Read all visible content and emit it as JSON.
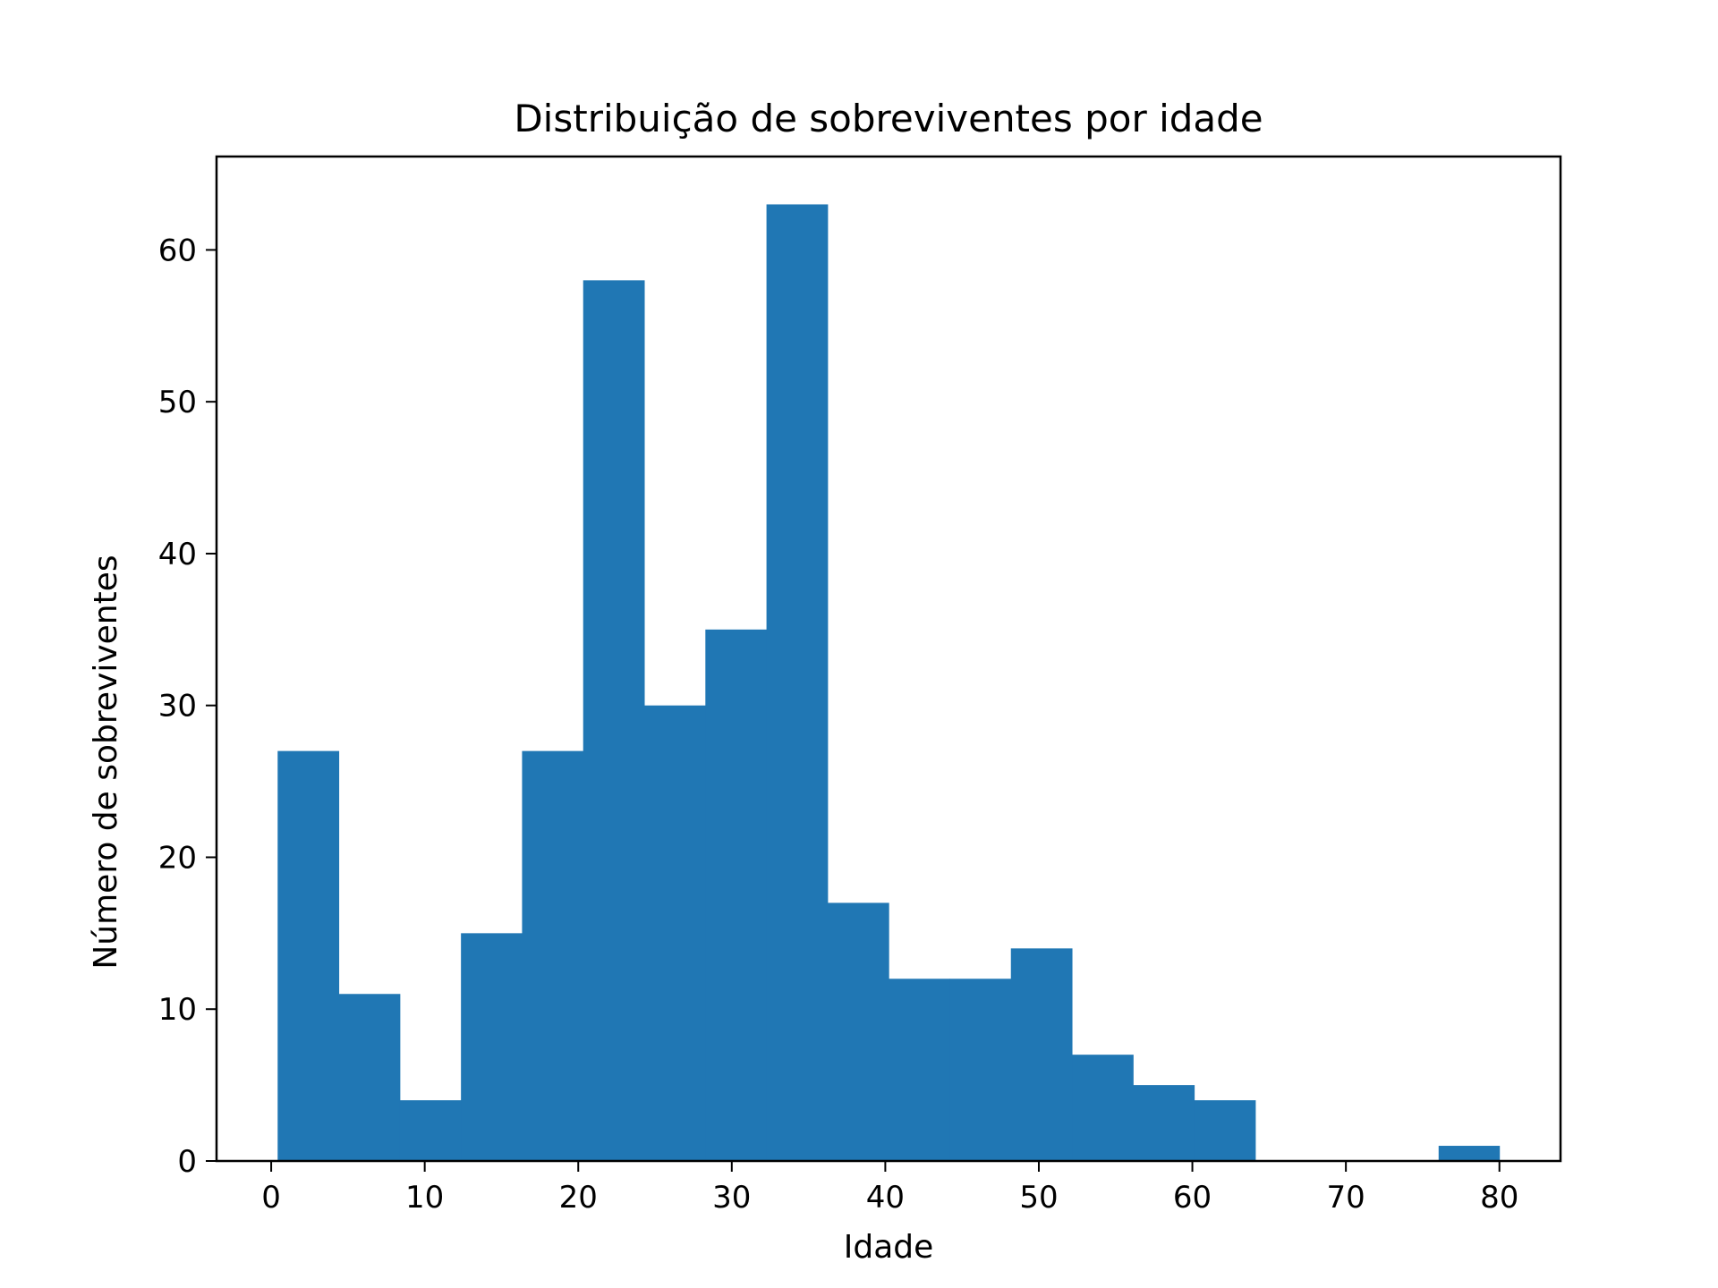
{
  "chart_data": {
    "type": "bar",
    "title": "Distribuição de sobreviventes por idade",
    "xlabel": "Idade",
    "ylabel": "Número de sobreviventes",
    "bin_edges": [
      0.42,
      4.4,
      8.38,
      12.36,
      16.34,
      20.32,
      24.3,
      28.28,
      32.26,
      36.24,
      40.22,
      44.2,
      48.18,
      52.16,
      56.14,
      60.12,
      64.1,
      68.08,
      72.06,
      76.04,
      80.0
    ],
    "values": [
      27,
      11,
      4,
      15,
      27,
      58,
      30,
      35,
      63,
      17,
      12,
      12,
      14,
      7,
      5,
      4,
      0,
      0,
      0,
      1
    ],
    "xlim": [
      -3.56,
      83.98
    ],
    "ylim": [
      0,
      66.15
    ],
    "xticks": [
      0,
      10,
      20,
      30,
      40,
      50,
      60,
      70,
      80
    ],
    "yticks": [
      0,
      10,
      20,
      30,
      40,
      50,
      60
    ],
    "grid": false,
    "bar_color": "#2077b4"
  }
}
